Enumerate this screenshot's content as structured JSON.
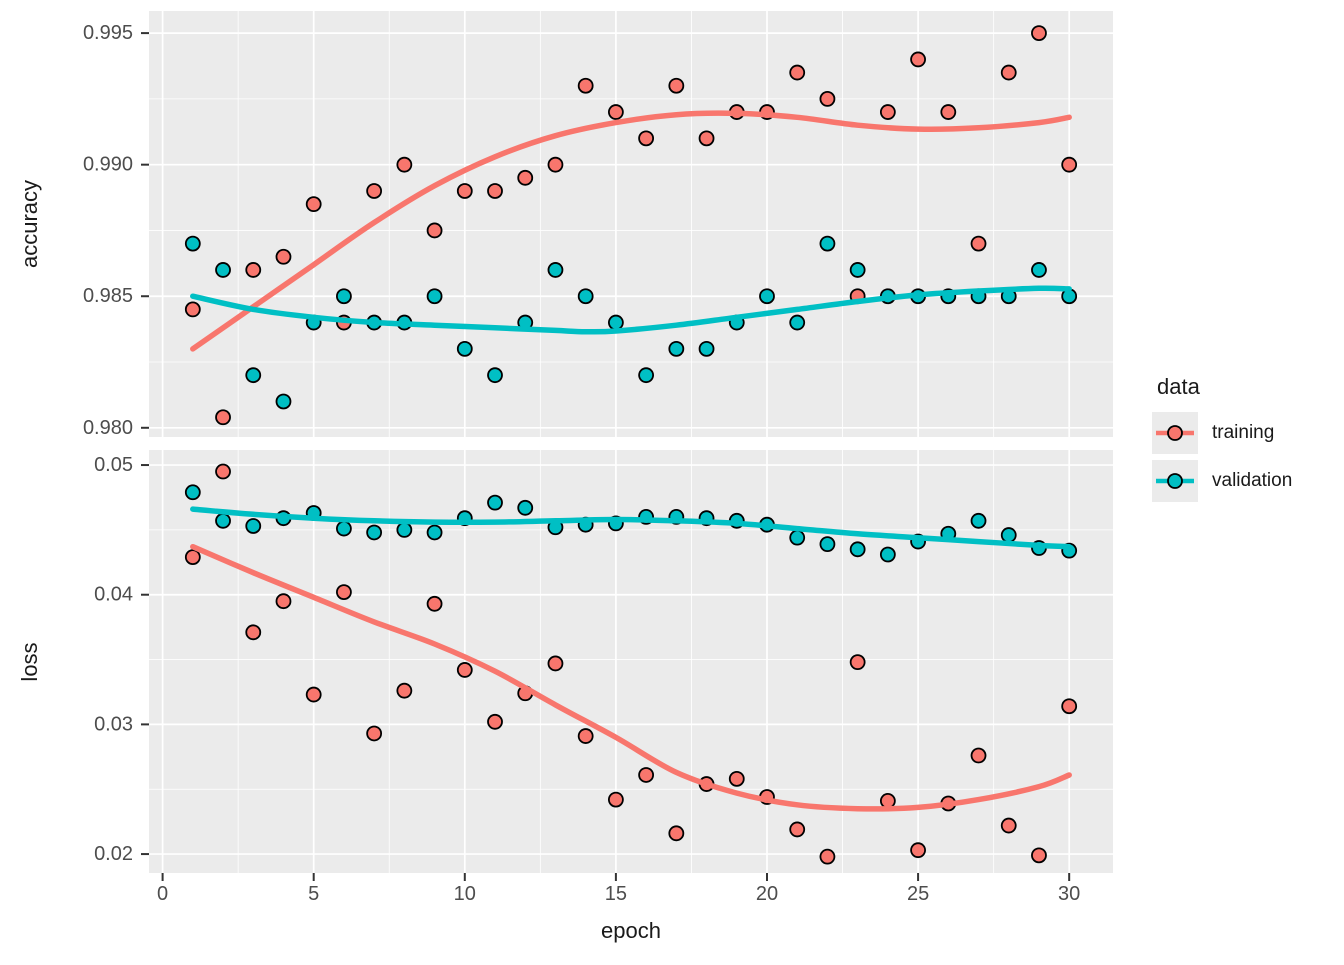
{
  "legend": {
    "title": "data",
    "items": [
      {
        "label": "training",
        "color": "#F8766D"
      },
      {
        "label": "validation",
        "color": "#00BFC4"
      }
    ]
  },
  "axes": {
    "x_title": "epoch",
    "y_title_top": "accuracy",
    "y_title_bottom": "loss"
  },
  "colors": {
    "training": "#F8766D",
    "validation": "#00BFC4",
    "panel_background": "#EBEBEB",
    "grid": "#FFFFFF",
    "tick_text": "#4D4D4D",
    "tick_mark": "#333333",
    "point_outline": "#000000"
  },
  "chart_data": {
    "type": "scatter",
    "smoother": "loess",
    "grid": true,
    "legend_position": "right",
    "xlabel": "epoch",
    "xlim": [
      -0.45,
      31.45
    ],
    "x_ticks": [
      0,
      5,
      10,
      15,
      20,
      25,
      30
    ],
    "x_tick_labels": [
      "0",
      "5",
      "10",
      "15",
      "20",
      "25",
      "30"
    ],
    "x_minor": [
      2.5,
      7.5,
      12.5,
      17.5,
      22.5,
      27.5
    ],
    "epochs": [
      1,
      2,
      3,
      4,
      5,
      6,
      7,
      8,
      9,
      10,
      11,
      12,
      13,
      14,
      15,
      16,
      17,
      18,
      19,
      20,
      21,
      22,
      23,
      24,
      25,
      26,
      27,
      28,
      29,
      30
    ],
    "panels": [
      {
        "ylabel": "accuracy",
        "ylim": [
          0.97965,
          0.99584
        ],
        "y_tick_values": [
          0.995,
          0.99,
          0.985,
          0.98
        ],
        "y_tick_labels": [
          "0.995",
          "0.990",
          "0.985",
          "0.980"
        ],
        "y_minor": [
          0.9925,
          0.9875,
          0.9825
        ],
        "series": [
          {
            "name": "training",
            "values": [
              0.9845,
              0.9804,
              0.986,
              0.9865,
              0.9885,
              0.984,
              0.989,
              0.99,
              0.9875,
              0.989,
              0.989,
              0.9895,
              0.99,
              0.993,
              0.992,
              0.991,
              0.993,
              0.991,
              0.992,
              0.992,
              0.9935,
              0.9925,
              0.985,
              0.992,
              0.994,
              0.992,
              0.987,
              0.9935,
              0.995,
              0.99
            ],
            "smooth": [
              [
                1,
                0.983
              ],
              [
                3,
                0.9846
              ],
              [
                5,
                0.9862
              ],
              [
                7,
                0.9878
              ],
              [
                9,
                0.9892
              ],
              [
                11,
                0.9903
              ],
              [
                13,
                0.9911
              ],
              [
                15,
                0.9916
              ],
              [
                17,
                0.9919
              ],
              [
                19,
                0.99195
              ],
              [
                21,
                0.9918
              ],
              [
                23,
                0.9915
              ],
              [
                25,
                0.99135
              ],
              [
                27,
                0.9914
              ],
              [
                29,
                0.9916
              ],
              [
                30,
                0.9918
              ]
            ]
          },
          {
            "name": "validation",
            "values": [
              0.987,
              0.986,
              0.982,
              0.981,
              0.984,
              0.985,
              0.984,
              0.984,
              0.985,
              0.983,
              0.982,
              0.984,
              0.986,
              0.985,
              0.984,
              0.982,
              0.983,
              0.983,
              0.984,
              0.985,
              0.984,
              0.987,
              0.986,
              0.985,
              0.985,
              0.985,
              0.985,
              0.985,
              0.986,
              0.985
            ],
            "smooth": [
              [
                1,
                0.985
              ],
              [
                3,
                0.9845
              ],
              [
                5,
                0.9842
              ],
              [
                7,
                0.984
              ],
              [
                9,
                0.9839
              ],
              [
                11,
                0.9838
              ],
              [
                13,
                0.9837
              ],
              [
                14,
                0.98365
              ],
              [
                15,
                0.98368
              ],
              [
                17,
                0.9839
              ],
              [
                19,
                0.9842
              ],
              [
                21,
                0.9845
              ],
              [
                23,
                0.9848
              ],
              [
                25,
                0.98505
              ],
              [
                27,
                0.9852
              ],
              [
                29,
                0.9853
              ],
              [
                30,
                0.98528
              ]
            ]
          }
        ]
      },
      {
        "ylabel": "loss",
        "ylim": [
          0.01854,
          0.05116
        ],
        "y_tick_values": [
          0.05,
          0.04,
          0.03,
          0.02
        ],
        "y_tick_labels": [
          "0.05",
          "0.04",
          "0.03",
          "0.02"
        ],
        "y_minor": [
          0.045,
          0.035,
          0.025
        ],
        "series": [
          {
            "name": "training",
            "values": [
              0.0429,
              0.0495,
              0.0371,
              0.0395,
              0.0323,
              0.0402,
              0.0293,
              0.0326,
              0.0393,
              0.0342,
              0.0302,
              0.0324,
              0.0347,
              0.0291,
              0.0242,
              0.0261,
              0.0216,
              0.0254,
              0.0258,
              0.0244,
              0.0219,
              0.0198,
              0.0348,
              0.0241,
              0.0203,
              0.0239,
              0.0276,
              0.0222,
              0.0199,
              0.0314
            ],
            "smooth": [
              [
                1,
                0.0437
              ],
              [
                3,
                0.0417
              ],
              [
                5,
                0.0398
              ],
              [
                7,
                0.0379
              ],
              [
                9,
                0.0362
              ],
              [
                11,
                0.0341
              ],
              [
                13,
                0.0315
              ],
              [
                15,
                0.029
              ],
              [
                17,
                0.0263
              ],
              [
                19,
                0.0247
              ],
              [
                21,
                0.0238
              ],
              [
                23,
                0.0235
              ],
              [
                25,
                0.0236
              ],
              [
                27,
                0.0242
              ],
              [
                29,
                0.0252
              ],
              [
                30,
                0.0261
              ]
            ]
          },
          {
            "name": "validation",
            "values": [
              0.0479,
              0.0457,
              0.0453,
              0.0459,
              0.0463,
              0.0451,
              0.0448,
              0.045,
              0.0448,
              0.0459,
              0.0471,
              0.0467,
              0.0452,
              0.0454,
              0.0455,
              0.046,
              0.046,
              0.0459,
              0.0457,
              0.0454,
              0.0444,
              0.0439,
              0.0435,
              0.0431,
              0.0441,
              0.0447,
              0.0457,
              0.0446,
              0.0436,
              0.0434
            ],
            "smooth": [
              [
                1,
                0.0466
              ],
              [
                3,
                0.0462
              ],
              [
                5,
                0.0459
              ],
              [
                7,
                0.0457
              ],
              [
                9,
                0.0456
              ],
              [
                11,
                0.0456
              ],
              [
                13,
                0.0457
              ],
              [
                15,
                0.0458
              ],
              [
                17,
                0.0457
              ],
              [
                19,
                0.0455
              ],
              [
                21,
                0.0451
              ],
              [
                23,
                0.0447
              ],
              [
                25,
                0.0444
              ],
              [
                27,
                0.0441
              ],
              [
                29,
                0.0438
              ],
              [
                30,
                0.0437
              ]
            ]
          }
        ]
      }
    ]
  }
}
